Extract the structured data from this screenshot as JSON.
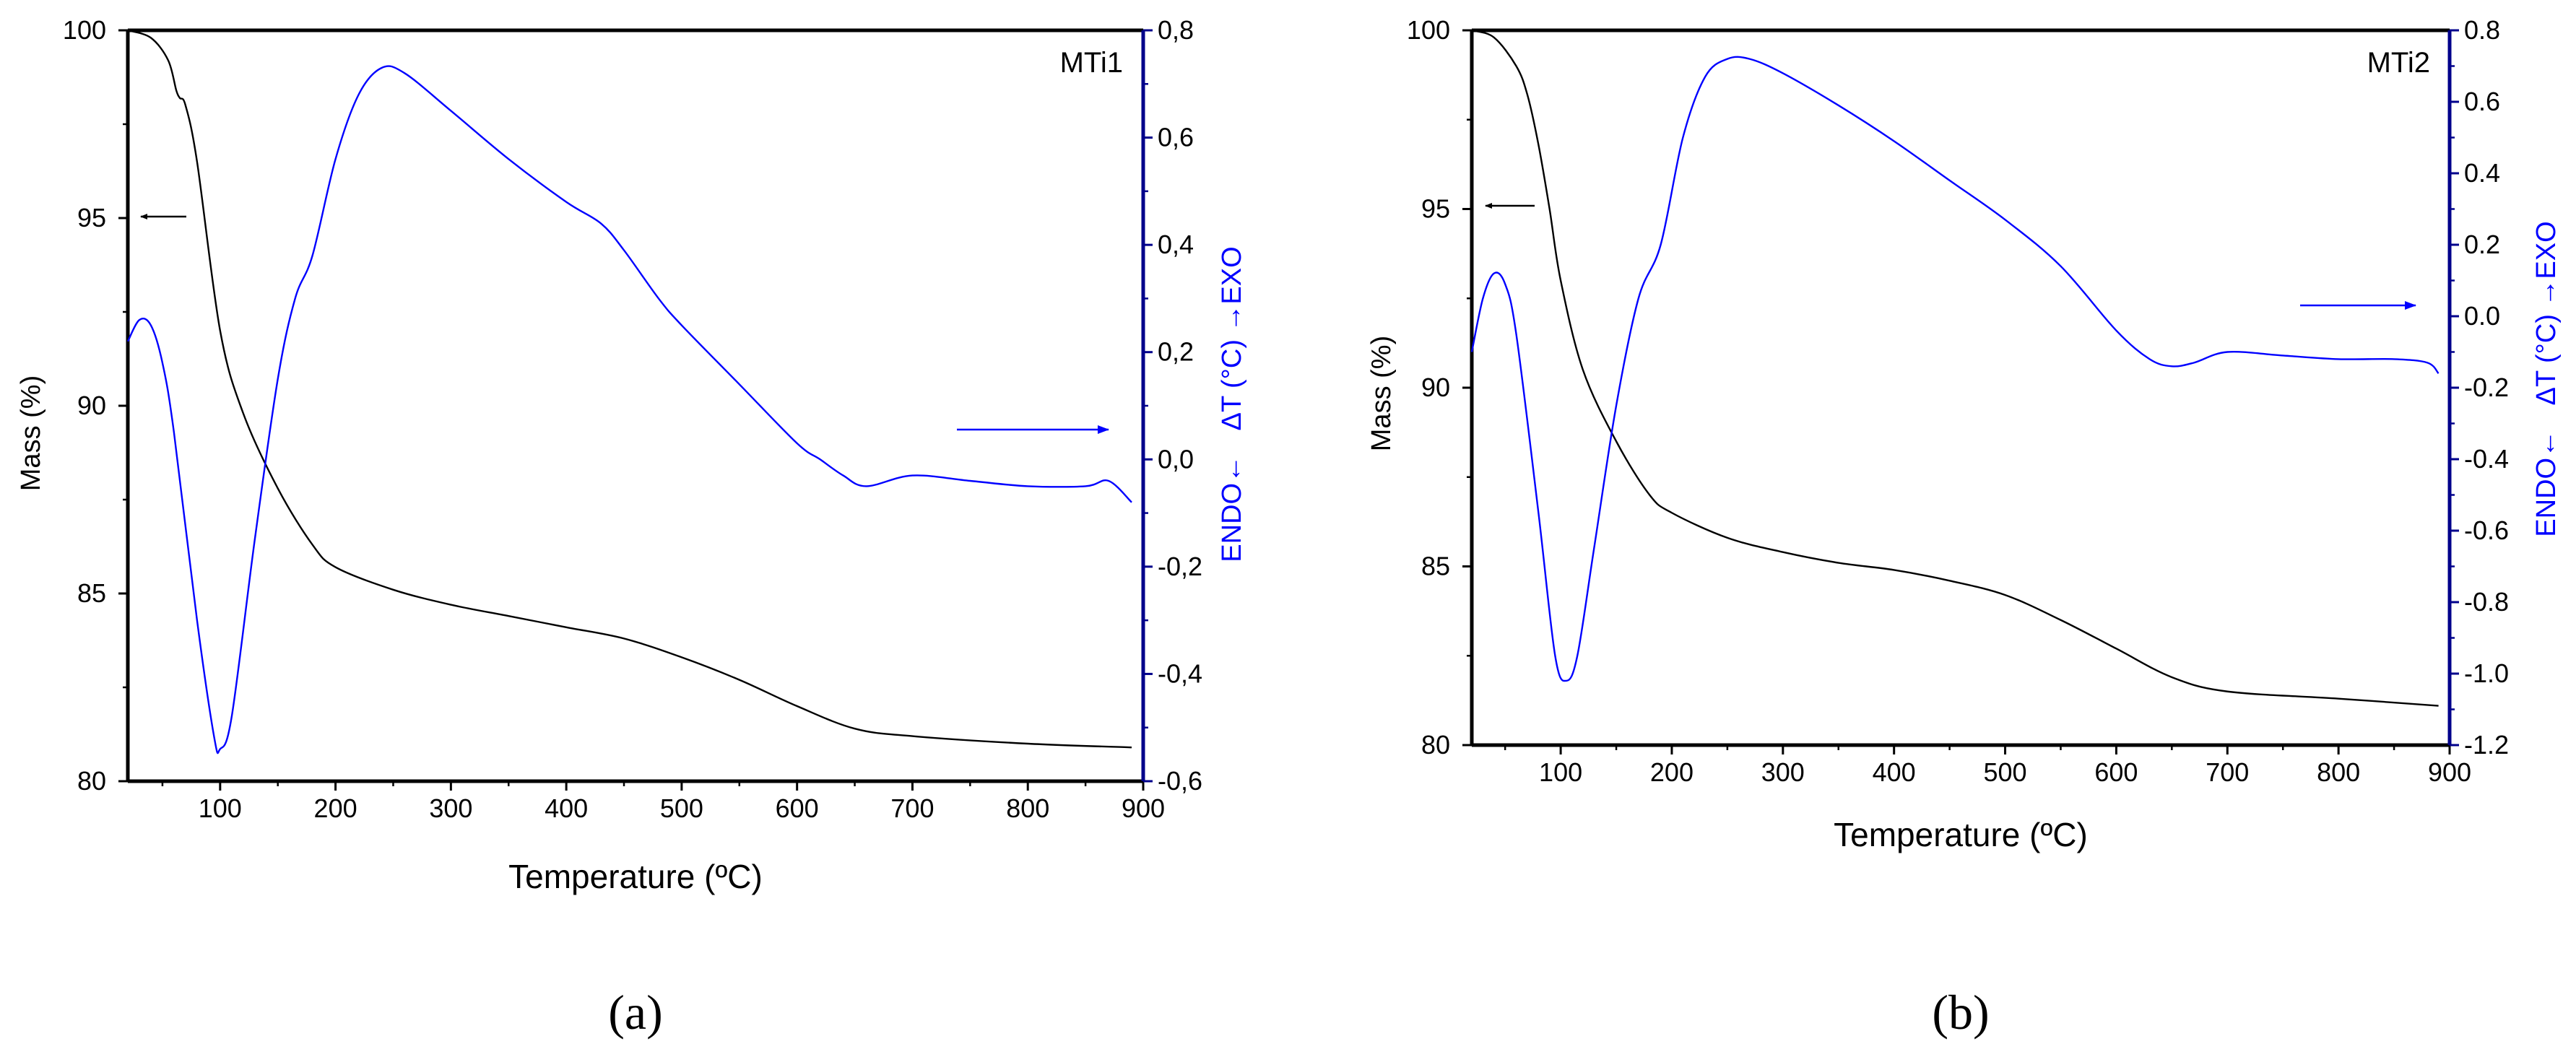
{
  "chart_data": [
    {
      "type": "line",
      "panel_label": "(a)",
      "title": "MTi1",
      "xlabel": "Temperature (ºC)",
      "ylabel": "Mass (%)",
      "y2label_left": "ENDO←",
      "y2label_mid": "ΔT (°C)",
      "y2label_right": "→EXO",
      "xlim": [
        20,
        900
      ],
      "ylim": [
        80,
        100
      ],
      "y2lim": [
        -0.6,
        0.8
      ],
      "xticks": [
        "100",
        "200",
        "300",
        "400",
        "500",
        "600",
        "700",
        "800",
        "900"
      ],
      "yticks": [
        "80",
        "85",
        "90",
        "95",
        "100"
      ],
      "y2ticks": [
        "-0,6",
        "-0,4",
        "-0,2",
        "0,0",
        "0,2",
        "0,4",
        "0,6",
        "0,8"
      ],
      "colors": {
        "mass": "#000000",
        "dta": "#0000ff",
        "axis2": "#00008b"
      },
      "series": [
        {
          "axis": "left",
          "x": [
            20,
            40,
            55,
            62,
            65,
            70,
            80,
            100,
            120,
            150,
            180,
            200,
            250,
            300,
            350,
            400,
            450,
            500,
            550,
            600,
            650,
            700,
            800,
            890
          ],
          "y": [
            100,
            99.8,
            99.2,
            98.4,
            98.2,
            98.0,
            96.5,
            92.0,
            89.8,
            87.8,
            86.3,
            85.7,
            85.1,
            84.7,
            84.4,
            84.1,
            83.8,
            83.3,
            82.7,
            82.0,
            81.4,
            81.2,
            81.0,
            80.9
          ]
        },
        {
          "axis": "right",
          "x": [
            20,
            30,
            40,
            50,
            60,
            80,
            95,
            100,
            110,
            130,
            150,
            165,
            180,
            200,
            220,
            240,
            260,
            300,
            350,
            400,
            430,
            450,
            480,
            500,
            550,
            600,
            620,
            640,
            660,
            700,
            750,
            800,
            850,
            870,
            890
          ],
          "y": [
            0.22,
            0.26,
            0.25,
            0.18,
            0.05,
            -0.3,
            -0.52,
            -0.54,
            -0.48,
            -0.15,
            0.15,
            0.3,
            0.38,
            0.56,
            0.68,
            0.73,
            0.72,
            0.65,
            0.56,
            0.48,
            0.44,
            0.39,
            0.3,
            0.25,
            0.14,
            0.03,
            0.0,
            -0.03,
            -0.05,
            -0.03,
            -0.04,
            -0.05,
            -0.05,
            -0.04,
            -0.08
          ]
        }
      ]
    },
    {
      "type": "line",
      "panel_label": "(b)",
      "title": "MTi2",
      "xlabel": "Temperature (ºC)",
      "ylabel": "Mass (%)",
      "y2label_left": "ENDO←",
      "y2label_mid": "ΔT (°C)",
      "y2label_right": "→EXO",
      "xlim": [
        20,
        900
      ],
      "ylim": [
        80,
        100
      ],
      "y2lim": [
        -1.2,
        0.8
      ],
      "xticks": [
        "100",
        "200",
        "300",
        "400",
        "500",
        "600",
        "700",
        "800",
        "900"
      ],
      "yticks": [
        "80",
        "85",
        "90",
        "95",
        "100"
      ],
      "y2ticks": [
        "-1.2",
        "-1.0",
        "-0.8",
        "-0.6",
        "-0.4",
        "-0.2",
        "0.0",
        "0.2",
        "0.4",
        "0.6",
        "0.8"
      ],
      "colors": {
        "mass": "#000000",
        "dta": "#0000ff",
        "axis2": "#00008b"
      },
      "series": [
        {
          "axis": "left",
          "x": [
            20,
            40,
            60,
            70,
            80,
            90,
            100,
            120,
            150,
            180,
            200,
            250,
            300,
            350,
            400,
            450,
            500,
            550,
            600,
            650,
            700,
            800,
            890
          ],
          "y": [
            100,
            99.8,
            99.0,
            98.2,
            96.8,
            95.0,
            93.0,
            90.5,
            88.5,
            87.0,
            86.5,
            85.8,
            85.4,
            85.1,
            84.9,
            84.6,
            84.2,
            83.5,
            82.7,
            81.9,
            81.5,
            81.3,
            81.1
          ]
        },
        {
          "axis": "right",
          "x": [
            20,
            30,
            40,
            50,
            60,
            80,
            95,
            105,
            115,
            130,
            150,
            170,
            190,
            210,
            230,
            250,
            270,
            300,
            350,
            400,
            450,
            500,
            550,
            600,
            630,
            650,
            670,
            700,
            750,
            800,
            850,
            880,
            890
          ],
          "y": [
            -0.1,
            0.05,
            0.12,
            0.09,
            -0.05,
            -0.55,
            -0.95,
            -1.02,
            -0.95,
            -0.65,
            -0.25,
            0.05,
            0.2,
            0.5,
            0.67,
            0.72,
            0.72,
            0.68,
            0.59,
            0.49,
            0.38,
            0.27,
            0.14,
            -0.04,
            -0.12,
            -0.14,
            -0.13,
            -0.1,
            -0.11,
            -0.12,
            -0.12,
            -0.13,
            -0.16
          ]
        }
      ]
    }
  ]
}
